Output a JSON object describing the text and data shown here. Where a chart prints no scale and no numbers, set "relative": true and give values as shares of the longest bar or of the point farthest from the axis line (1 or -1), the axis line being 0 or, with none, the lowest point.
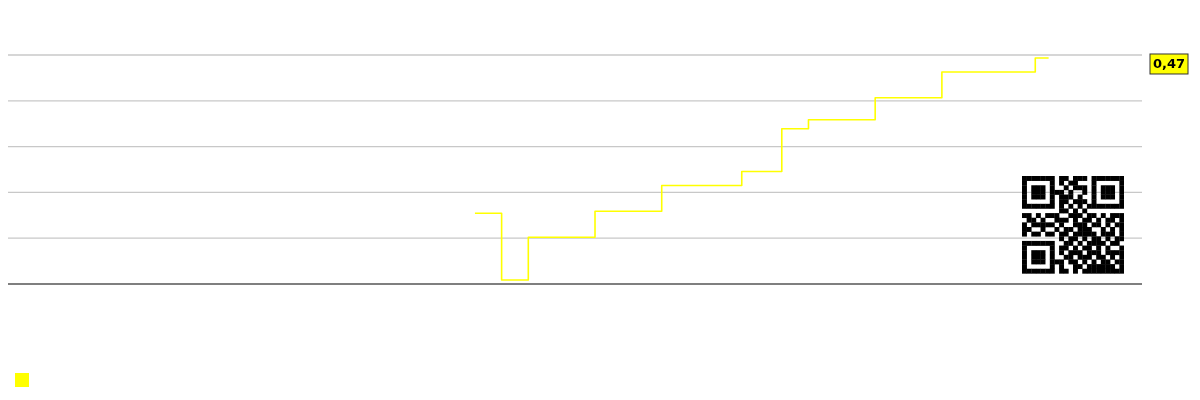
{
  "chart_data": {
    "type": "step",
    "relative": true,
    "grid": "y",
    "color": "#ffff00",
    "annotations": [
      "0,47"
    ],
    "categories": [
      null,
      null,
      null,
      null,
      null,
      null,
      null,
      null,
      null,
      null,
      null,
      null,
      null,
      null,
      null,
      null,
      null,
      null,
      null,
      null,
      null,
      null,
      null,
      null,
      null,
      null,
      null,
      null,
      null,
      null,
      null,
      null,
      null,
      null,
      null,
      null,
      null,
      null,
      null,
      null,
      null,
      null,
      null,
      null,
      null,
      null,
      null,
      null,
      null,
      null,
      null,
      null,
      null,
      null,
      null,
      null,
      null,
      null,
      null,
      null,
      null,
      null,
      null,
      null,
      null,
      null,
      null,
      null,
      null,
      null,
      null,
      null,
      null,
      null,
      null,
      null,
      null,
      null,
      null,
      null,
      null,
      null,
      null,
      null,
      null,
      null
    ],
    "values": [
      null,
      null,
      null,
      null,
      null,
      null,
      null,
      null,
      null,
      null,
      null,
      null,
      null,
      null,
      null,
      null,
      null,
      null,
      null,
      null,
      null,
      null,
      null,
      null,
      null,
      null,
      null,
      null,
      null,
      null,
      null,
      null,
      null,
      null,
      null,
      0.313,
      0.313,
      0.018,
      0.018,
      0.207,
      0.207,
      0.207,
      0.207,
      0.207,
      0.322,
      0.322,
      0.322,
      0.322,
      0.322,
      0.436,
      0.436,
      0.436,
      0.436,
      0.436,
      0.436,
      0.498,
      0.498,
      0.498,
      0.687,
      0.687,
      0.727,
      0.727,
      0.727,
      0.727,
      0.727,
      0.824,
      0.824,
      0.824,
      0.824,
      0.824,
      0.938,
      0.938,
      0.938,
      0.938,
      0.938,
      0.938,
      0.938,
      1,
      1,
      null,
      null,
      null,
      null,
      null,
      null,
      null
    ]
  }
}
